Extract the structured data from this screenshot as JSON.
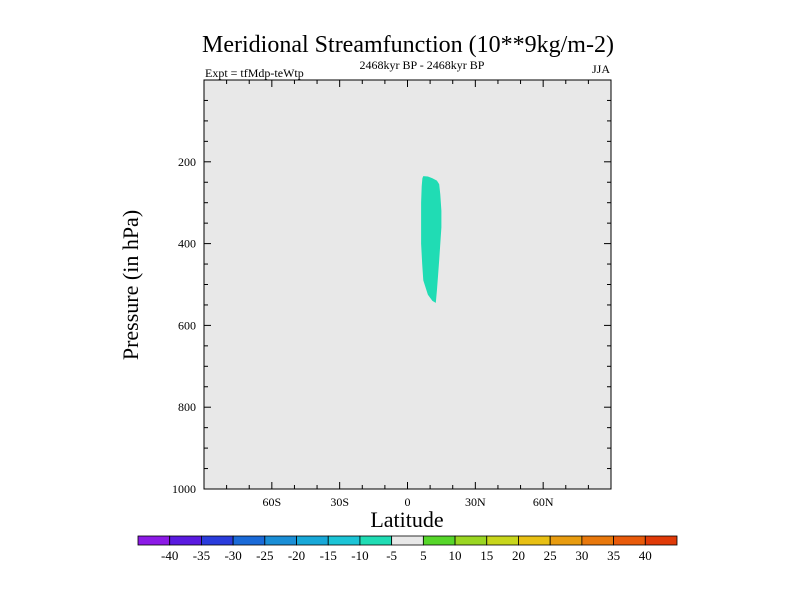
{
  "chart_data": {
    "type": "contour",
    "title": "Meridional Streamfunction (10**9kg/m-2)",
    "subtitle_left": "Expt = tfMdp-teWtp",
    "subtitle_center": "2468kyr BP - 2468kyr BP",
    "subtitle_right": "JJA",
    "xlabel": "Latitude",
    "ylabel": "Pressure (in hPa)",
    "xlim": [
      -90,
      90
    ],
    "ylim": [
      1000,
      0
    ],
    "x_ticks": [
      {
        "value": -60,
        "label": "60S"
      },
      {
        "value": -30,
        "label": "30S"
      },
      {
        "value": 0,
        "label": "0"
      },
      {
        "value": 30,
        "label": "30N"
      },
      {
        "value": 60,
        "label": "60N"
      }
    ],
    "y_ticks": [
      {
        "value": 200,
        "label": "200"
      },
      {
        "value": 400,
        "label": "400"
      },
      {
        "value": 600,
        "label": "600"
      },
      {
        "value": 800,
        "label": "800"
      },
      {
        "value": 1000,
        "label": "1000"
      }
    ],
    "background_color": "#e8e8e8",
    "filled_regions": [
      {
        "level_range": [
          -10,
          -5
        ],
        "color": "#20dcb4",
        "polygon_lat_p": [
          [
            7,
            235
          ],
          [
            9,
            236
          ],
          [
            11,
            240
          ],
          [
            13,
            246
          ],
          [
            14,
            255
          ],
          [
            14.5,
            280
          ],
          [
            15,
            320
          ],
          [
            15,
            360
          ],
          [
            14.5,
            400
          ],
          [
            14,
            440
          ],
          [
            13.5,
            480
          ],
          [
            13,
            515
          ],
          [
            12.5,
            545
          ],
          [
            11,
            540
          ],
          [
            9,
            525
          ],
          [
            7,
            490
          ],
          [
            6.5,
            450
          ],
          [
            6,
            400
          ],
          [
            6,
            350
          ],
          [
            6,
            300
          ],
          [
            6.3,
            260
          ],
          [
            6.6,
            240
          ]
        ]
      }
    ],
    "colorbar": {
      "labels": [
        "-40",
        "-35",
        "-30",
        "-25",
        "-20",
        "-15",
        "-10",
        "-5",
        "5",
        "10",
        "15",
        "20",
        "25",
        "30",
        "35",
        "40"
      ],
      "colors": [
        "#8c1ae6",
        "#5a1ae0",
        "#2a3cdc",
        "#1a6ad8",
        "#1a8ed6",
        "#18a8d8",
        "#1cc4d6",
        "#20dcb4",
        "#e8e8e8",
        "#56d62a",
        "#9ad622",
        "#c8d61c",
        "#e8c014",
        "#e89c10",
        "#e8780c",
        "#e85a0a",
        "#e03a08"
      ]
    }
  }
}
